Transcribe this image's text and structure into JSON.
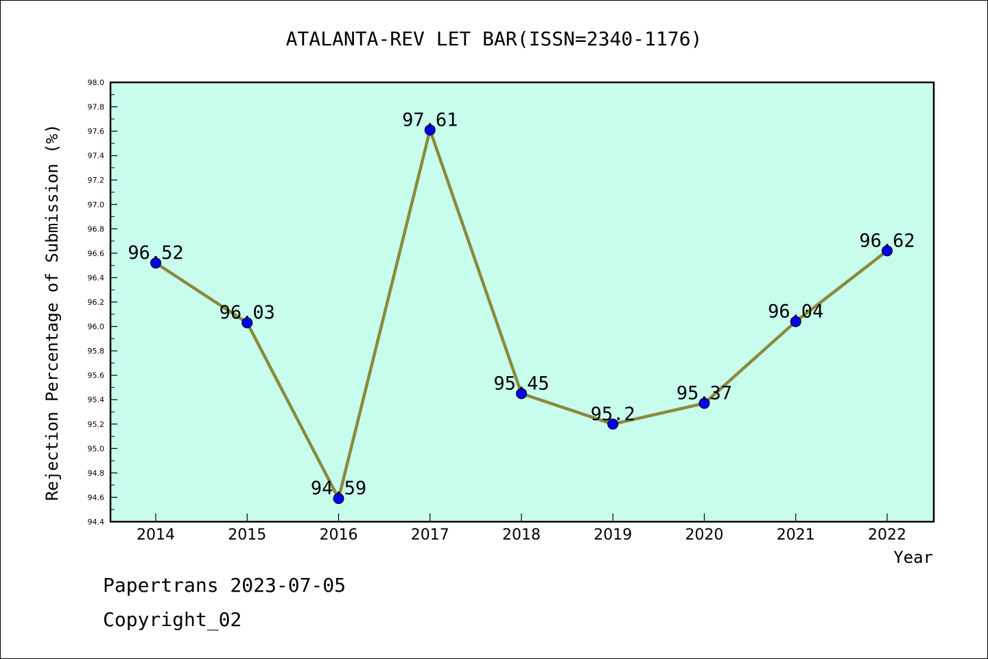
{
  "chart_data": {
    "type": "line",
    "title": "ATALANTA-REV LET BAR(ISSN=2340-1176)",
    "xlabel": "Year",
    "ylabel": "Rejection Percentage of Submission (%)",
    "categories": [
      "2014",
      "2015",
      "2016",
      "2017",
      "2018",
      "2019",
      "2020",
      "2021",
      "2022"
    ],
    "values": [
      96.52,
      96.03,
      94.59,
      97.61,
      95.45,
      95.2,
      95.37,
      96.04,
      96.62
    ],
    "data_labels": [
      "96.52",
      "96.03",
      "94.59",
      "97.61",
      "95.45",
      "95.2",
      "95.37",
      "96.04",
      "96.62"
    ],
    "ylim": [
      94.4,
      98.0
    ],
    "yticks": [
      "94.4",
      "94.6",
      "94.8",
      "95.0",
      "95.2",
      "95.4",
      "95.6",
      "95.8",
      "96.0",
      "96.2",
      "96.4",
      "96.6",
      "96.8",
      "97.0",
      "97.2",
      "97.4",
      "97.6",
      "97.8",
      "98.0"
    ],
    "colors": {
      "plot_background": "#c8fcec",
      "line": "#8b8a3c",
      "marker": "#0000ee"
    }
  },
  "footer": {
    "line1": "Papertrans 2023-07-05",
    "line2": "Copyright_02"
  }
}
